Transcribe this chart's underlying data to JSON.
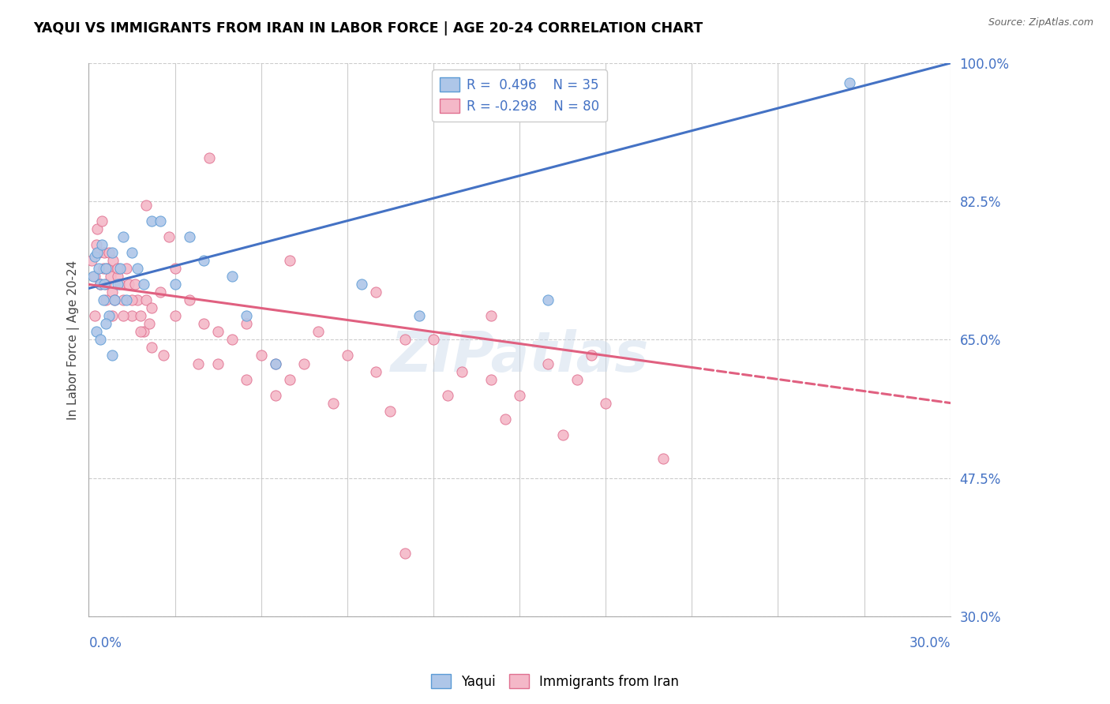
{
  "title": "YAQUI VS IMMIGRANTS FROM IRAN IN LABOR FORCE | AGE 20-24 CORRELATION CHART",
  "source": "Source: ZipAtlas.com",
  "ylabel_text": "In Labor Force | Age 20-24",
  "xmin": 0.0,
  "xmax": 30.0,
  "ymin": 30.0,
  "ymax": 100.0,
  "yticks": [
    30.0,
    47.5,
    65.0,
    82.5,
    100.0
  ],
  "color_yaqui_fill": "#aec6e8",
  "color_yaqui_edge": "#5b9bd5",
  "color_iran_fill": "#f4b8c8",
  "color_iran_edge": "#e07090",
  "color_blue_line": "#4472c4",
  "color_pink_line": "#e06080",
  "color_text_blue": "#4472c4",
  "background_color": "#ffffff",
  "watermark_text": "ZIPatlas",
  "blue_line_x0": 0.0,
  "blue_line_y0": 71.5,
  "blue_line_x1": 30.0,
  "blue_line_y1": 100.0,
  "pink_line_x0": 0.0,
  "pink_line_y0": 72.0,
  "pink_line_x1": 30.0,
  "pink_line_y1": 57.0,
  "pink_solid_end": 21.0,
  "pink_dash_start": 21.0,
  "yaqui_x": [
    0.15,
    0.2,
    0.3,
    0.35,
    0.4,
    0.45,
    0.5,
    0.55,
    0.6,
    0.7,
    0.8,
    0.9,
    1.0,
    1.1,
    1.2,
    1.3,
    1.5,
    1.7,
    1.9,
    2.2,
    2.5,
    3.0,
    3.5,
    4.0,
    5.0,
    5.5,
    6.5,
    9.5,
    11.5,
    16.0,
    0.25,
    0.4,
    0.6,
    0.8,
    26.5
  ],
  "yaqui_y": [
    73.0,
    75.5,
    76.0,
    74.0,
    72.0,
    77.0,
    70.0,
    72.0,
    74.0,
    68.0,
    76.0,
    70.0,
    72.0,
    74.0,
    78.0,
    70.0,
    76.0,
    74.0,
    72.0,
    80.0,
    80.0,
    72.0,
    78.0,
    75.0,
    73.0,
    68.0,
    62.0,
    72.0,
    68.0,
    70.0,
    66.0,
    65.0,
    67.0,
    63.0,
    97.5
  ],
  "iran_x": [
    0.1,
    0.2,
    0.25,
    0.3,
    0.35,
    0.4,
    0.45,
    0.5,
    0.55,
    0.6,
    0.65,
    0.7,
    0.75,
    0.8,
    0.85,
    0.9,
    1.0,
    1.1,
    1.2,
    1.3,
    1.4,
    1.5,
    1.6,
    1.7,
    1.8,
    1.9,
    2.0,
    2.1,
    2.2,
    2.5,
    2.8,
    3.0,
    3.5,
    4.0,
    4.5,
    5.0,
    5.5,
    6.0,
    6.5,
    7.0,
    7.5,
    8.0,
    9.0,
    10.0,
    11.0,
    12.0,
    13.0,
    14.0,
    15.0,
    16.0,
    17.0,
    18.0,
    0.2,
    0.4,
    0.6,
    0.8,
    1.0,
    1.2,
    1.5,
    1.8,
    2.2,
    2.6,
    3.0,
    3.8,
    4.5,
    5.5,
    6.5,
    8.5,
    10.5,
    12.5,
    14.5,
    16.5,
    20.0,
    2.0,
    4.2,
    7.0,
    10.0,
    14.0,
    17.5,
    11.0
  ],
  "iran_y": [
    75.0,
    73.0,
    77.0,
    79.0,
    76.0,
    72.0,
    80.0,
    74.0,
    76.0,
    72.0,
    74.0,
    76.0,
    73.0,
    71.0,
    75.0,
    70.0,
    73.0,
    72.0,
    70.0,
    74.0,
    72.0,
    68.0,
    72.0,
    70.0,
    68.0,
    66.0,
    70.0,
    67.0,
    69.0,
    71.0,
    78.0,
    74.0,
    70.0,
    67.0,
    66.0,
    65.0,
    67.0,
    63.0,
    62.0,
    60.0,
    62.0,
    66.0,
    63.0,
    61.0,
    65.0,
    65.0,
    61.0,
    60.0,
    58.0,
    62.0,
    60.0,
    57.0,
    68.0,
    72.0,
    70.0,
    68.0,
    74.0,
    68.0,
    70.0,
    66.0,
    64.0,
    63.0,
    68.0,
    62.0,
    62.0,
    60.0,
    58.0,
    57.0,
    56.0,
    58.0,
    55.0,
    53.0,
    50.0,
    82.0,
    88.0,
    75.0,
    71.0,
    68.0,
    63.0,
    38.0
  ]
}
